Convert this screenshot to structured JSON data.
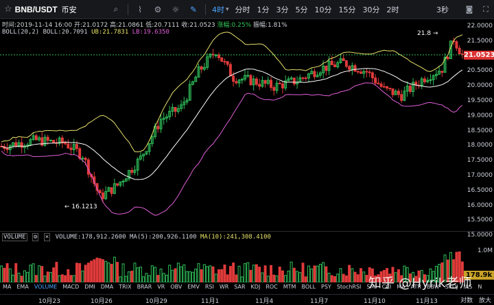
{
  "toolbar": {
    "symbol": "BNB/USDT",
    "exchange": "币安",
    "intervals": [
      "4时",
      "分时",
      "1分",
      "3分",
      "5分",
      "10分",
      "15分",
      "30分",
      "2时"
    ],
    "active_interval": "4时",
    "refresh": "3秒"
  },
  "ohlc": {
    "time": "时间:2019-11-14 16:00",
    "open": "开:21.0172",
    "high": "高:21.0861",
    "low": "低:20.7111",
    "close": "收:21.0523",
    "change": "涨幅:0.25%",
    "amplitude": "振幅:1.81%"
  },
  "boll": {
    "label": "BOLL(20,2)",
    "mid": "BOLL:20.7091",
    "ub": "UB:21.7831",
    "lb": "LB:19.6350"
  },
  "price_axis": [
    "22.0000",
    "21.5000",
    "21.0000",
    "20.5000",
    "20.0000",
    "19.5000",
    "19.0000",
    "18.5000",
    "18.0000",
    "17.5000",
    "17.0000",
    "16.5000",
    "16.0000",
    "15.5000",
    "15.0000"
  ],
  "current_price": "21.0523",
  "annotations": {
    "high": "21.8 →",
    "low": "← 16.1213"
  },
  "volume": {
    "label": "VOLUME",
    "value": "VOLUME:178,912.2600",
    "ma5": "MA(5):200,926.1100",
    "ma10": "MA(10):241,308.4100",
    "axis_1m": "1.0M",
    "current": "178.9k"
  },
  "indicators": [
    "MA",
    "EMA",
    "VOLUME",
    "MACD",
    "DMI",
    "DMA",
    "TRIX",
    "BRAR",
    "VR",
    "OBV",
    "EMV",
    "RSI",
    "WR",
    "SAR",
    "KDJ",
    "ROC",
    "MTM",
    "BOLL",
    "PSY",
    "StochRSI",
    "SMI",
    "CCI",
    "MA",
    "ATR",
    "BBW",
    "SKDJ",
    "IAS",
    "N"
  ],
  "active_indicator": "VOLUME",
  "dates": [
    "10月23",
    "10月26",
    "10月29",
    "11月1",
    "11月4",
    "11月7",
    "11月10",
    "11月13"
  ],
  "right_buttons": [
    "对数",
    "放大"
  ],
  "watermark": "知乎 @Hyrik老师",
  "colors": {
    "up": "#2fbf5a",
    "down": "#e03a3a",
    "accent": "#4aa3ff",
    "ma5": "#ffffff",
    "ma10": "#e8e26a",
    "lb": "#e15fd9"
  }
}
